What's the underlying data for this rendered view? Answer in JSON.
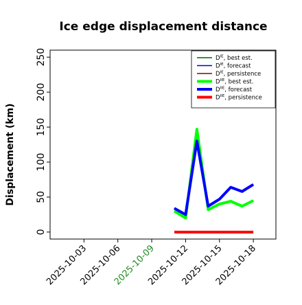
{
  "chart_data": {
    "type": "line",
    "title": "Ice edge displacement distance",
    "y_label": "Displacement (km)",
    "x": [
      "2025-10-11",
      "2025-10-12",
      "2025-10-13",
      "2025-10-14",
      "2025-10-15",
      "2025-10-16",
      "2025-10-17",
      "2025-10-18"
    ],
    "xlim": [
      "2025-09-30",
      "2025-10-20"
    ],
    "xticks": [
      "2025-10-03",
      "2025-10-06",
      "2025-10-09",
      "2025-10-12",
      "2025-10-15",
      "2025-10-18"
    ],
    "highlight_tick_index": 2,
    "highlight_color": "#228b22",
    "ylim": [
      -10,
      260
    ],
    "yticks": [
      0,
      50,
      100,
      150,
      200,
      250
    ],
    "legend": "upper right",
    "series": [
      {
        "symbol": "D",
        "superscript": "IE",
        "name": ", best est.",
        "color": "#006400",
        "width": 1.5,
        "values": [
          30,
          20,
          147,
          32,
          40,
          44,
          37,
          45
        ]
      },
      {
        "symbol": "D",
        "superscript": "IE",
        "name": ", forecast",
        "color": "#0000cc",
        "width": 1.5,
        "values": [
          34,
          25,
          130,
          37,
          47,
          64,
          58,
          68
        ]
      },
      {
        "symbol": "D",
        "superscript": "IE",
        "name": ", persistence",
        "color": "#8b0000",
        "width": 1.5,
        "values": [
          0,
          0,
          0,
          0,
          0,
          0,
          0,
          0
        ]
      },
      {
        "symbol": "D",
        "superscript": "IIE",
        "name": ", best est.",
        "color": "#00ff00",
        "width": 4,
        "values": [
          30,
          20,
          147,
          32,
          40,
          44,
          37,
          45
        ]
      },
      {
        "symbol": "D",
        "superscript": "IIE",
        "name": ", forecast",
        "color": "#0000ff",
        "width": 4,
        "values": [
          34,
          25,
          130,
          37,
          47,
          64,
          58,
          68
        ]
      },
      {
        "symbol": "D",
        "superscript": "IIE",
        "name": ", persistence",
        "color": "#ff0000",
        "width": 4,
        "values": [
          0,
          0,
          0,
          0,
          0,
          0,
          0,
          0
        ]
      }
    ]
  }
}
